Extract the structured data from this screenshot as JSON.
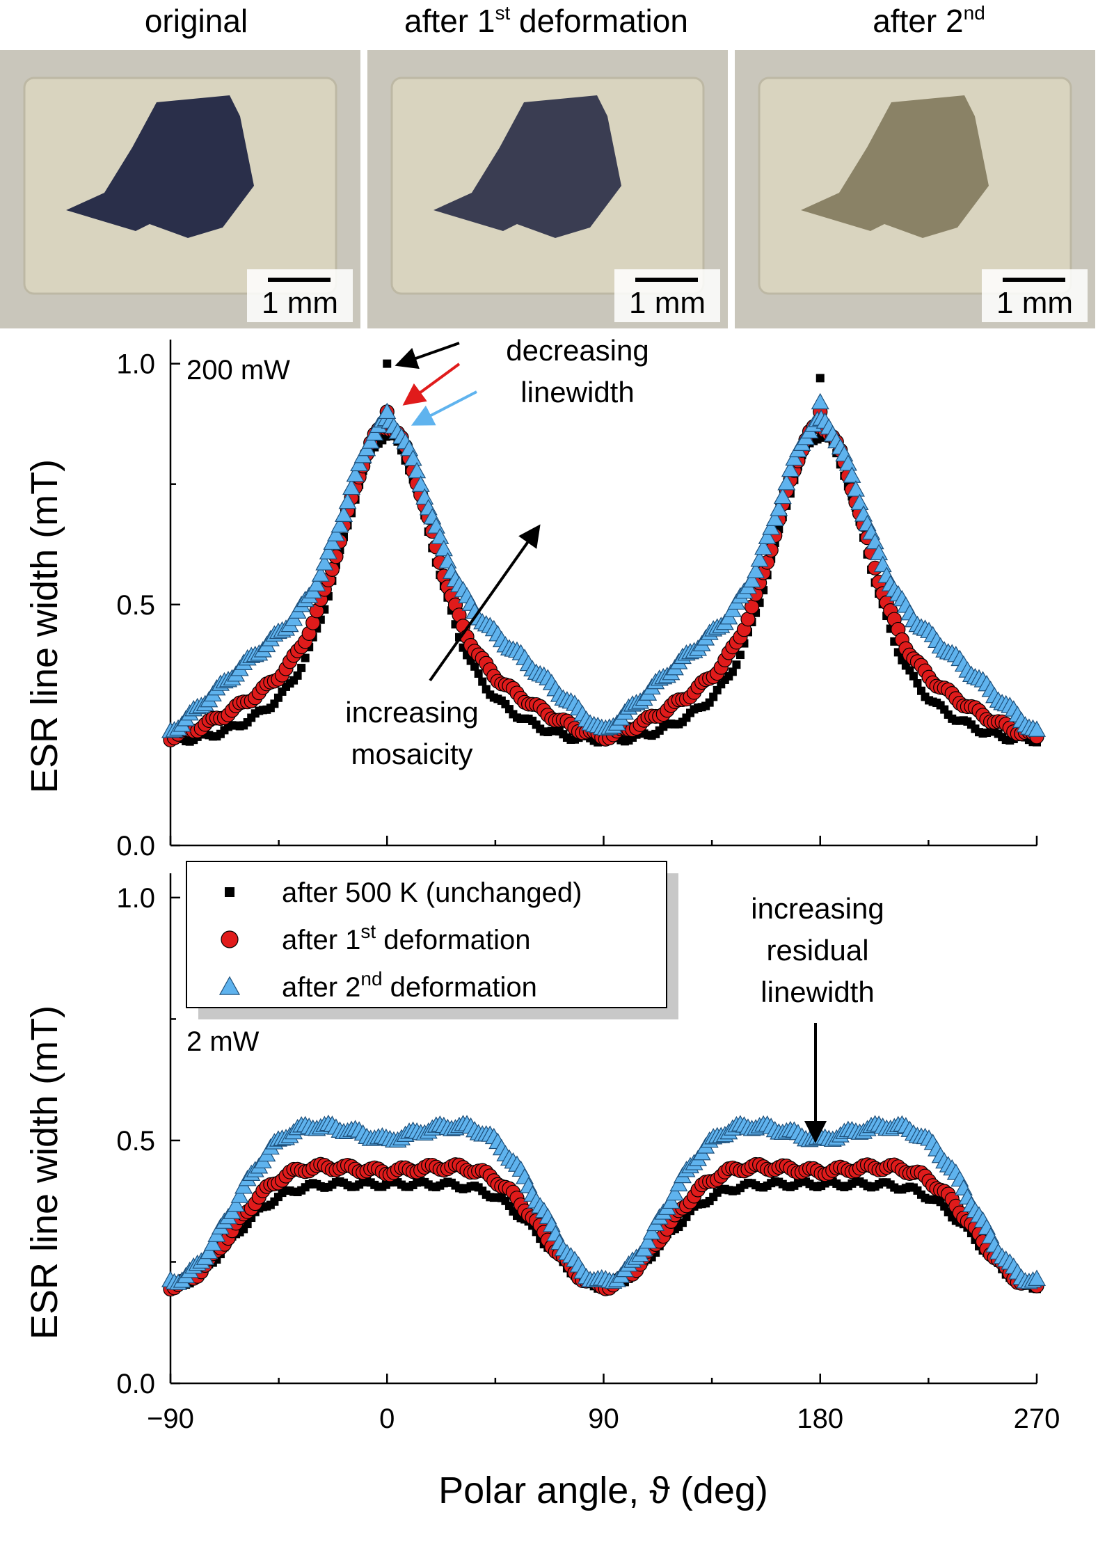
{
  "photos": {
    "titles": [
      "original",
      "after 1",
      "after 2"
    ],
    "title_suffix": [
      "",
      "st deformation",
      "nd"
    ],
    "title_sup": [
      "",
      "st",
      "nd"
    ],
    "title_rest": [
      "",
      " deformation",
      ""
    ],
    "scale_label": "1 mm",
    "tones": [
      "#2a2f4a",
      "#3a3d52",
      "#8a8266"
    ]
  },
  "chart_data": [
    {
      "type": "scatter",
      "title": "200 mW",
      "xlabel": "Polar angle, ϑ (deg)",
      "ylabel": "ESR line width (mT)",
      "xlim": [
        -90,
        270
      ],
      "ylim": [
        0,
        1.05
      ],
      "xticks": [
        -90,
        0,
        90,
        180,
        270
      ],
      "xtick_labels": [
        "−90",
        "0",
        "90",
        "180",
        "270"
      ],
      "yticks": [
        0,
        0.5,
        1.0
      ],
      "ytick_labels": [
        "0.0",
        "0.5",
        "1.0"
      ],
      "series": [
        {
          "name": "after 500 K (unchanged)",
          "marker": "square",
          "color": "#000000",
          "model": {
            "base": 0.22,
            "peak": 0.85,
            "shoulder": 0.0,
            "peak_top": [
              1.0,
              0.97
            ]
          }
        },
        {
          "name": "after 1st deformation",
          "marker": "circle",
          "color": "#e01b1b",
          "model": {
            "base": 0.225,
            "peak": 0.87,
            "shoulder": 0.04,
            "peak_top": [
              0.9,
              0.9
            ]
          }
        },
        {
          "name": "after 2nd deformation",
          "marker": "triangle",
          "color": "#5fb3ee",
          "model": {
            "base": 0.235,
            "peak": 0.88,
            "shoulder": 0.12,
            "peak_top": [
              0.9,
              0.92
            ]
          }
        }
      ],
      "annotations": [
        "decreasing",
        "linewidth",
        "increasing",
        "mosaicity"
      ]
    },
    {
      "type": "scatter",
      "title": "2 mW",
      "xlabel": "Polar angle, ϑ (deg)",
      "ylabel": "ESR line width (mT)",
      "xlim": [
        -90,
        270
      ],
      "ylim": [
        0,
        1.05
      ],
      "xticks": [
        -90,
        0,
        90,
        180,
        270
      ],
      "xtick_labels": [
        "−90",
        "0",
        "90",
        "180",
        "270"
      ],
      "yticks": [
        0,
        0.5,
        1.0
      ],
      "ytick_labels": [
        "0.0",
        "0.5",
        "1.0"
      ],
      "series": [
        {
          "name": "after 500 K (unchanged)",
          "marker": "square",
          "color": "#000000",
          "model": {
            "min": 0.2,
            "plateau": 0.41,
            "lobe": 0.0
          }
        },
        {
          "name": "after 1st deformation",
          "marker": "circle",
          "color": "#e01b1b",
          "model": {
            "min": 0.2,
            "plateau": 0.42,
            "lobe": 0.03
          }
        },
        {
          "name": "after 2nd deformation",
          "marker": "triangle",
          "color": "#5fb3ee",
          "model": {
            "min": 0.21,
            "plateau": 0.46,
            "lobe": 0.08
          }
        }
      ],
      "annotations": [
        "increasing",
        "residual",
        "linewidth"
      ]
    }
  ],
  "legend": {
    "items": [
      "after 500 K (unchanged)",
      "after 1",
      "after 2"
    ],
    "sups": [
      "",
      "st",
      "nd"
    ],
    "rests": [
      "",
      " deformation",
      " deformation"
    ]
  }
}
